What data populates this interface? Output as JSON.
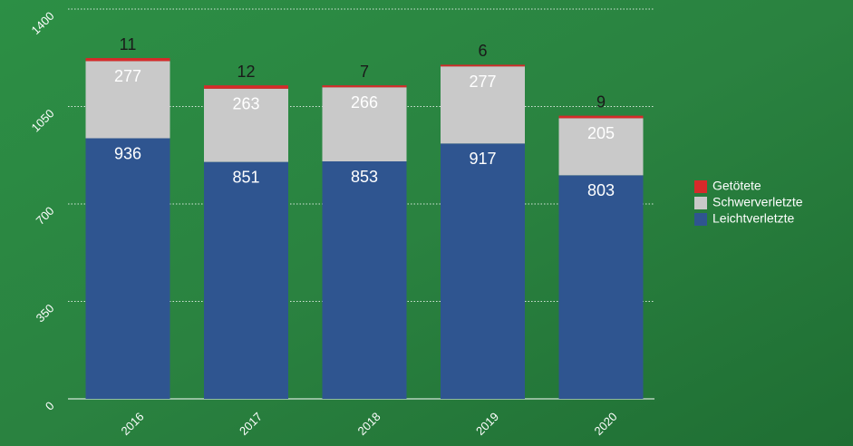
{
  "chart_data": {
    "type": "stacked-bar",
    "categories": [
      "2016",
      "2017",
      "2018",
      "2019",
      "2020"
    ],
    "series": [
      {
        "name": "Leichtverletzte",
        "color": "#2f5590",
        "values": [
          936,
          851,
          853,
          917,
          803
        ]
      },
      {
        "name": "Schwerverletzte",
        "color": "#c9c9c9",
        "values": [
          277,
          263,
          266,
          277,
          205
        ]
      },
      {
        "name": "Getötete",
        "color": "#d62a2a",
        "values": [
          11,
          12,
          7,
          6,
          9
        ]
      }
    ],
    "ylim": [
      0,
      1400
    ],
    "yticks": [
      0,
      350,
      700,
      1050,
      1400
    ],
    "grid": true
  }
}
